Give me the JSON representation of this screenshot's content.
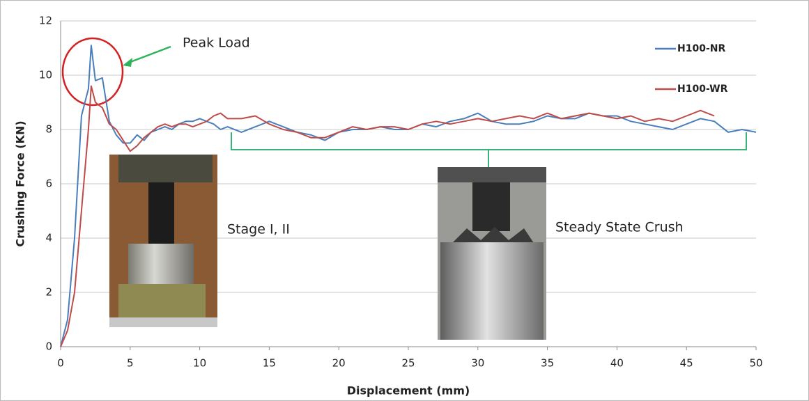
{
  "chart_data": {
    "type": "line",
    "x_label": "Displacement (mm)",
    "y_label": "Crushing Force (KN)",
    "annotations": [
      "Peak Load",
      "Stage I, II",
      "Steady State Crush"
    ],
    "x": [
      0,
      0.5,
      1,
      1.5,
      2,
      2.2,
      2.5,
      3,
      3.5,
      4,
      4.5,
      5,
      5.5,
      6,
      6.5,
      7,
      7.5,
      8,
      8.5,
      9,
      9.5,
      10,
      10.5,
      11,
      11.5,
      12,
      13,
      14,
      15,
      16,
      17,
      18,
      19,
      20,
      21,
      22,
      23,
      24,
      25,
      26,
      27,
      28,
      29,
      30,
      31,
      32,
      33,
      34,
      35,
      36,
      37,
      38,
      39,
      40,
      41,
      42,
      43,
      44,
      45,
      46,
      47,
      48,
      49,
      50
    ],
    "series": [
      {
        "name": "H100-NR",
        "color": "#4a7ebb",
        "values": [
          0,
          1,
          4,
          8.5,
          9.5,
          11.1,
          9.8,
          9.9,
          8.3,
          7.8,
          7.5,
          7.5,
          7.8,
          7.6,
          7.9,
          8.0,
          8.1,
          8.0,
          8.2,
          8.3,
          8.3,
          8.4,
          8.3,
          8.2,
          8.0,
          8.1,
          7.9,
          8.1,
          8.3,
          8.1,
          7.9,
          7.8,
          7.6,
          7.9,
          8.0,
          8.0,
          8.1,
          8.0,
          8.0,
          8.2,
          8.1,
          8.3,
          8.4,
          8.6,
          8.3,
          8.2,
          8.2,
          8.3,
          8.5,
          8.4,
          8.4,
          8.6,
          8.5,
          8.5,
          8.3,
          8.2,
          8.1,
          8.0,
          8.2,
          8.4,
          8.3,
          7.9,
          8.0,
          7.9
        ]
      },
      {
        "name": "H100-WR",
        "color": "#be4b48",
        "values": [
          0,
          0.6,
          2,
          5,
          8,
          9.6,
          9.0,
          8.8,
          8.2,
          8.0,
          7.6,
          7.2,
          7.4,
          7.7,
          7.9,
          8.1,
          8.2,
          8.1,
          8.2,
          8.2,
          8.1,
          8.2,
          8.3,
          8.5,
          8.6,
          8.4,
          8.4,
          8.5,
          8.2,
          8.0,
          7.9,
          7.7,
          7.7,
          7.9,
          8.1,
          8.0,
          8.1,
          8.1,
          8.0,
          8.2,
          8.3,
          8.2,
          8.3,
          8.4,
          8.3,
          8.4,
          8.5,
          8.4,
          8.6,
          8.4,
          8.5,
          8.6,
          8.5,
          8.4,
          8.5,
          8.3,
          8.4,
          8.3,
          8.5,
          8.7,
          8.5,
          null,
          null,
          null
        ]
      }
    ],
    "xlim": [
      0,
      50
    ],
    "xticks": [
      0,
      5,
      10,
      15,
      20,
      25,
      30,
      35,
      40,
      45,
      50
    ],
    "ylim": [
      0,
      12
    ],
    "yticks": [
      0,
      2,
      4,
      6,
      8,
      10,
      12
    ],
    "grid": true,
    "legend": "upper right"
  }
}
